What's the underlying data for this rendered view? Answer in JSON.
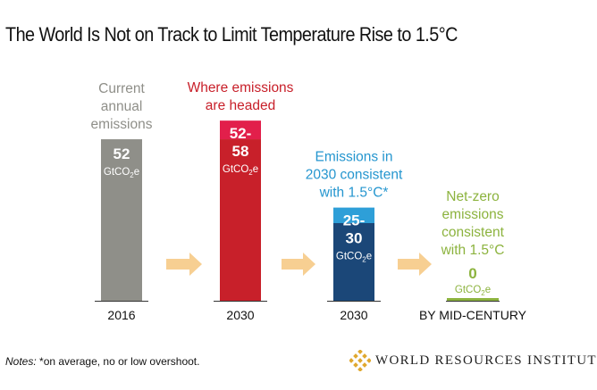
{
  "title": "The World Is Not on Track to Limit Temperature Rise to 1.5°C",
  "notes_label": "Notes:",
  "notes_text": " *on average, no or low overshoot.",
  "logo_text": "WORLD RESOURCES INSTITUTE",
  "colors": {
    "current": "#8f8f89",
    "headed_low": "#c8202a",
    "headed_high": "#e21f4b",
    "consistent_low": "#1b4778",
    "consistent_high": "#2e9fd8",
    "netzero": "#8cb33e",
    "arrow": "#f7cf92",
    "logo": "#e0a82e"
  },
  "chart_data": {
    "type": "bar",
    "unit": "GtCO2e",
    "categories": [
      "2016",
      "2030",
      "2030",
      "BY MID-CENTURY"
    ],
    "bars": [
      {
        "category": "2016",
        "heading": [
          "Current",
          "annual",
          "emissions"
        ],
        "heading_color": "#8f8f89",
        "value": 52,
        "label_lines": [
          "52"
        ],
        "color": "#8f8f89"
      },
      {
        "category": "2030",
        "heading": [
          "Where emissions",
          "are headed"
        ],
        "heading_color": "#c8202a",
        "range": [
          52,
          58
        ],
        "label_lines": [
          "52-",
          "58"
        ],
        "color_low": "#c8202a",
        "color_high": "#e21f4b"
      },
      {
        "category": "2030",
        "heading": [
          "Emissions in",
          "2030 consistent",
          "with 1.5°C*"
        ],
        "heading_color": "#2596cf",
        "range": [
          25,
          30
        ],
        "label_lines": [
          "25-",
          "30"
        ],
        "color_low": "#1b4778",
        "color_high": "#2e9fd8"
      },
      {
        "category": "BY MID-CENTURY",
        "heading": [
          "Net-zero",
          "emissions",
          "consistent",
          "with 1.5°C"
        ],
        "heading_color": "#8cb33e",
        "value": 0,
        "label_lines": [
          "0"
        ],
        "color": "#8cb33e"
      }
    ]
  }
}
